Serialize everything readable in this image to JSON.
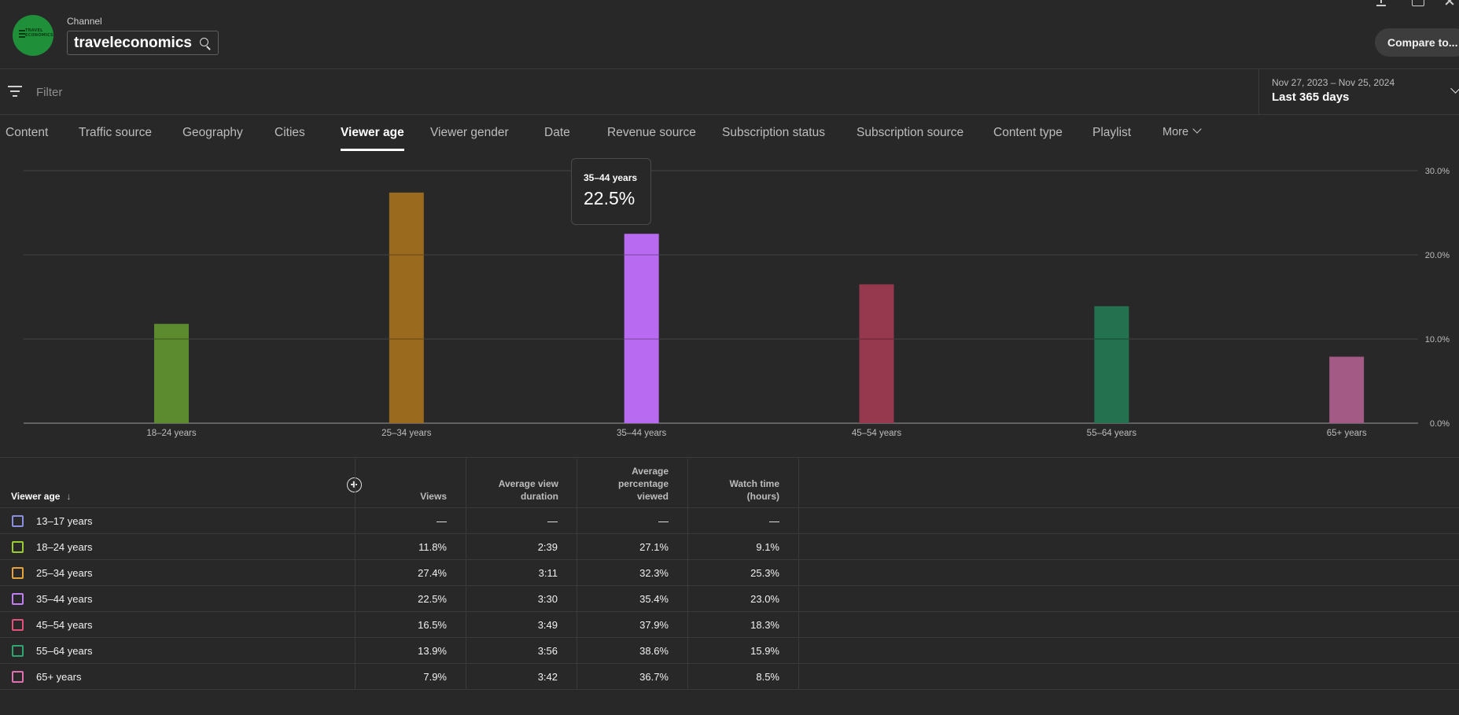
{
  "header": {
    "channel_label": "Channel",
    "channel_name": "traveleconomics",
    "avatar_text": "TRAVEL ECONOMICS",
    "compare_label": "Compare to..."
  },
  "filter": {
    "placeholder": "Filter",
    "date_range_sub": "Nov 27, 2023 – Nov 25, 2024",
    "date_range_main": "Last 365 days"
  },
  "tabs": [
    {
      "label": "Content"
    },
    {
      "label": "Traffic source"
    },
    {
      "label": "Geography"
    },
    {
      "label": "Cities"
    },
    {
      "label": "Viewer age",
      "active": true
    },
    {
      "label": "Viewer gender"
    },
    {
      "label": "Date"
    },
    {
      "label": "Revenue source"
    },
    {
      "label": "Subscription status"
    },
    {
      "label": "Subscription source"
    },
    {
      "label": "Content type"
    },
    {
      "label": "Playlist"
    },
    {
      "label": "More"
    }
  ],
  "chart_data": {
    "type": "bar",
    "categories": [
      "18–24 years",
      "25–34 years",
      "35–44 years",
      "45–54 years",
      "55–64 years",
      "65+ years"
    ],
    "values": [
      11.8,
      27.4,
      22.5,
      16.5,
      13.9,
      7.9
    ],
    "colors": [
      "#5c8a2e",
      "#9a6b1e",
      "#b86bf0",
      "#96394f",
      "#23714f",
      "#a35a85"
    ],
    "y_ticks": [
      "0.0%",
      "10.0%",
      "20.0%",
      "30.0%"
    ],
    "ylim": [
      0,
      30
    ],
    "grid": true,
    "y_axis_side": "right",
    "tooltip": {
      "title": "35–44 years",
      "value": "22.5%"
    }
  },
  "table": {
    "headers": {
      "age": "Viewer age",
      "views": "Views",
      "avd": [
        "Average view",
        "duration"
      ],
      "apv": [
        "Average",
        "percentage",
        "viewed"
      ],
      "watch": [
        "Watch time",
        "(hours)"
      ]
    },
    "rows": [
      {
        "age": "13–17 years",
        "views": "—",
        "avd": "—",
        "apv": "—",
        "watch": "—",
        "color": "#8a8fe0"
      },
      {
        "age": "18–24 years",
        "views": "11.8%",
        "avd": "2:39",
        "apv": "27.1%",
        "watch": "9.1%",
        "color": "#9acd32"
      },
      {
        "age": "25–34 years",
        "views": "27.4%",
        "avd": "3:11",
        "apv": "32.3%",
        "watch": "25.3%",
        "color": "#e6a23c"
      },
      {
        "age": "35–44 years",
        "views": "22.5%",
        "avd": "3:30",
        "apv": "35.4%",
        "watch": "23.0%",
        "color": "#c17ef5"
      },
      {
        "age": "45–54 years",
        "views": "16.5%",
        "avd": "3:49",
        "apv": "37.9%",
        "watch": "18.3%",
        "color": "#e3527a"
      },
      {
        "age": "55–64 years",
        "views": "13.9%",
        "avd": "3:56",
        "apv": "38.6%",
        "watch": "15.9%",
        "color": "#2fa572"
      },
      {
        "age": "65+ years",
        "views": "7.9%",
        "avd": "3:42",
        "apv": "36.7%",
        "watch": "8.5%",
        "color": "#e070b0"
      }
    ]
  }
}
